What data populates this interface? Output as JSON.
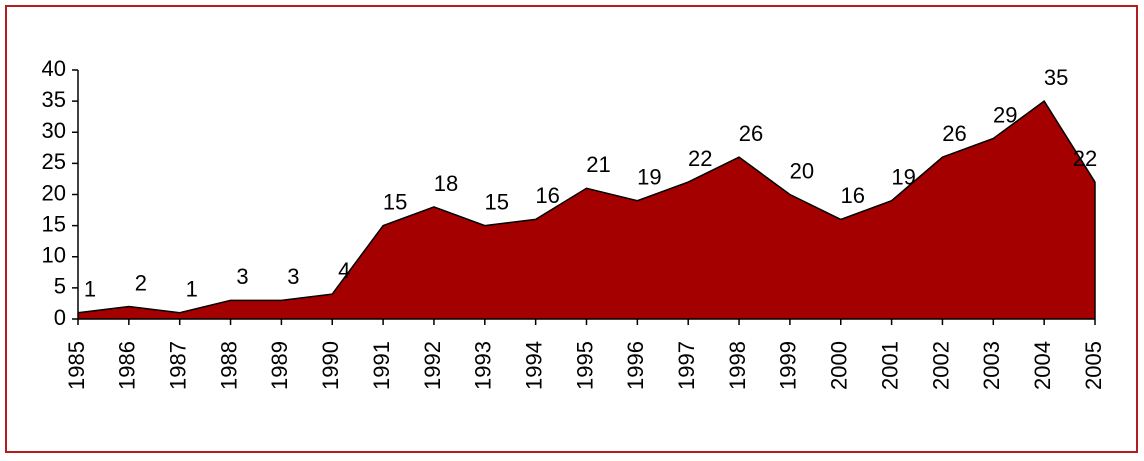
{
  "chart_data": {
    "type": "area",
    "categories": [
      "1985",
      "1986",
      "1987",
      "1988",
      "1989",
      "1990",
      "1991",
      "1992",
      "1993",
      "1994",
      "1995",
      "1996",
      "1997",
      "1998",
      "1999",
      "2000",
      "2001",
      "2002",
      "2003",
      "2004",
      "2005"
    ],
    "values": [
      1,
      2,
      1,
      3,
      3,
      4,
      15,
      18,
      15,
      16,
      21,
      19,
      22,
      26,
      20,
      16,
      19,
      26,
      29,
      35,
      22
    ],
    "color": "#a50000",
    "ylim": [
      0,
      40
    ],
    "yticks": [
      0,
      5,
      10,
      15,
      20,
      25,
      30,
      35,
      40
    ]
  }
}
